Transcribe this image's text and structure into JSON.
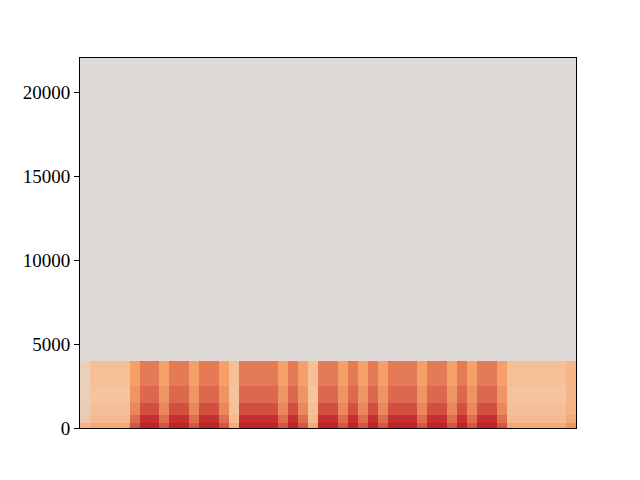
{
  "chart_data": {
    "type": "heatmap",
    "x": [
      0,
      1,
      2,
      3,
      4,
      5,
      6,
      7,
      8,
      9,
      10,
      11,
      12,
      13,
      14,
      15,
      16,
      17,
      18,
      19,
      20,
      21,
      22,
      23,
      24,
      25,
      26,
      27,
      28,
      29,
      30,
      31,
      32,
      33,
      34,
      35,
      36,
      37,
      38,
      39,
      40,
      41,
      42,
      43,
      44,
      45,
      46,
      47,
      48,
      49,
      50
    ],
    "y": [
      0,
      300,
      800,
      1500,
      2500,
      4000,
      22050
    ],
    "cells": [
      [
        0.3,
        0.35,
        0.35,
        0.35,
        0.35,
        0.7,
        0.9,
        0.9,
        0.7,
        0.9,
        0.9,
        0.7,
        0.9,
        0.9,
        0.7,
        0.35,
        0.9,
        0.9,
        0.9,
        0.9,
        0.7,
        0.9,
        0.7,
        0.35,
        0.9,
        0.9,
        0.7,
        0.9,
        0.7,
        0.9,
        0.7,
        0.9,
        0.9,
        0.9,
        0.7,
        0.9,
        0.9,
        0.7,
        0.9,
        0.7,
        0.9,
        0.9,
        0.7,
        0.35,
        0.35,
        0.35,
        0.35,
        0.35,
        0.35,
        0.45
      ],
      [
        0.15,
        0.25,
        0.25,
        0.25,
        0.25,
        0.6,
        0.85,
        0.85,
        0.6,
        0.85,
        0.85,
        0.6,
        0.85,
        0.85,
        0.6,
        0.25,
        0.85,
        0.85,
        0.85,
        0.85,
        0.6,
        0.85,
        0.6,
        0.25,
        0.85,
        0.85,
        0.6,
        0.85,
        0.6,
        0.85,
        0.6,
        0.85,
        0.85,
        0.85,
        0.6,
        0.85,
        0.85,
        0.6,
        0.85,
        0.6,
        0.85,
        0.85,
        0.6,
        0.25,
        0.25,
        0.25,
        0.25,
        0.25,
        0.25,
        0.35
      ],
      [
        0.12,
        0.22,
        0.22,
        0.22,
        0.22,
        0.5,
        0.72,
        0.72,
        0.5,
        0.72,
        0.72,
        0.5,
        0.72,
        0.72,
        0.5,
        0.22,
        0.72,
        0.72,
        0.72,
        0.72,
        0.5,
        0.72,
        0.5,
        0.22,
        0.72,
        0.72,
        0.5,
        0.72,
        0.5,
        0.72,
        0.5,
        0.72,
        0.72,
        0.72,
        0.5,
        0.72,
        0.72,
        0.5,
        0.72,
        0.5,
        0.72,
        0.72,
        0.5,
        0.22,
        0.22,
        0.22,
        0.22,
        0.22,
        0.22,
        0.3
      ],
      [
        0.1,
        0.2,
        0.2,
        0.2,
        0.2,
        0.45,
        0.62,
        0.62,
        0.45,
        0.62,
        0.62,
        0.45,
        0.62,
        0.62,
        0.45,
        0.2,
        0.62,
        0.62,
        0.62,
        0.62,
        0.45,
        0.62,
        0.45,
        0.2,
        0.62,
        0.62,
        0.45,
        0.62,
        0.45,
        0.62,
        0.45,
        0.62,
        0.62,
        0.62,
        0.45,
        0.62,
        0.62,
        0.45,
        0.62,
        0.45,
        0.62,
        0.62,
        0.45,
        0.2,
        0.2,
        0.2,
        0.2,
        0.2,
        0.2,
        0.28
      ],
      [
        0.1,
        0.22,
        0.22,
        0.22,
        0.22,
        0.4,
        0.55,
        0.55,
        0.4,
        0.55,
        0.55,
        0.4,
        0.55,
        0.55,
        0.4,
        0.22,
        0.55,
        0.55,
        0.55,
        0.55,
        0.4,
        0.55,
        0.4,
        0.22,
        0.55,
        0.55,
        0.4,
        0.55,
        0.4,
        0.55,
        0.4,
        0.55,
        0.55,
        0.55,
        0.4,
        0.55,
        0.55,
        0.4,
        0.55,
        0.4,
        0.55,
        0.55,
        0.4,
        0.22,
        0.22,
        0.22,
        0.22,
        0.22,
        0.22,
        0.28
      ],
      [
        0.02,
        0.02,
        0.02,
        0.02,
        0.02,
        0.02,
        0.02,
        0.02,
        0.02,
        0.02,
        0.02,
        0.02,
        0.02,
        0.02,
        0.02,
        0.02,
        0.02,
        0.02,
        0.02,
        0.02,
        0.02,
        0.02,
        0.02,
        0.02,
        0.02,
        0.02,
        0.02,
        0.02,
        0.02,
        0.02,
        0.02,
        0.02,
        0.02,
        0.02,
        0.02,
        0.02,
        0.02,
        0.02,
        0.02,
        0.02,
        0.02,
        0.02,
        0.02,
        0.02,
        0.02,
        0.02,
        0.02,
        0.02,
        0.02,
        0.02
      ]
    ],
    "zlim": [
      0,
      1
    ],
    "xlim": [
      0,
      50
    ],
    "ylim": [
      0,
      22050
    ],
    "yticks": [
      0,
      5000,
      10000,
      15000,
      20000
    ],
    "tick_labels": "y",
    "color": "Inferno"
  }
}
